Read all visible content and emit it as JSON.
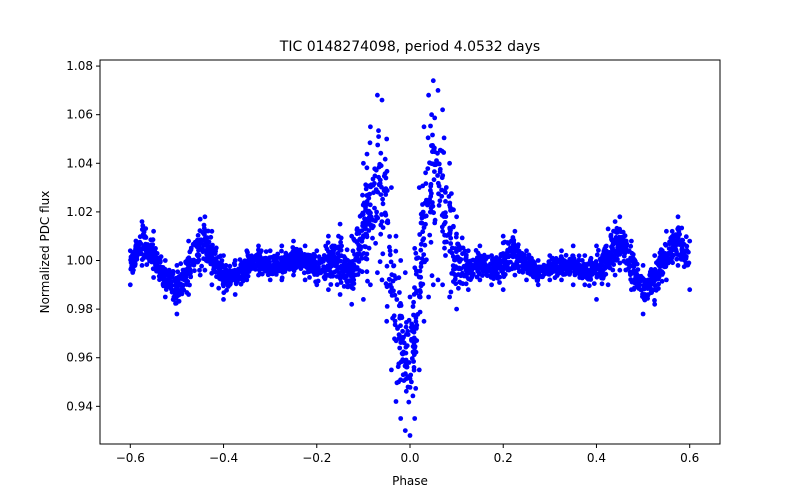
{
  "chart_data": {
    "type": "scatter",
    "title": "TIC 0148274098, period 4.0532 days",
    "xlabel": "Phase",
    "ylabel": "Normalized PDC flux",
    "xlim": [
      -0.665,
      0.665
    ],
    "ylim": [
      0.9245,
      1.0825
    ],
    "grid": false,
    "marker_color": "#0000ff",
    "x_ticks": [
      {
        "value": -0.6,
        "label": "−0.6"
      },
      {
        "value": -0.4,
        "label": "−0.4"
      },
      {
        "value": -0.2,
        "label": "−0.2"
      },
      {
        "value": 0.0,
        "label": "0.0"
      },
      {
        "value": 0.2,
        "label": "0.2"
      },
      {
        "value": 0.4,
        "label": "0.4"
      },
      {
        "value": 0.6,
        "label": "0.6"
      }
    ],
    "y_ticks": [
      {
        "value": 0.94,
        "label": "0.94"
      },
      {
        "value": 0.96,
        "label": "0.96"
      },
      {
        "value": 0.98,
        "label": "0.98"
      },
      {
        "value": 1.0,
        "label": "1.00"
      },
      {
        "value": 1.02,
        "label": "1.02"
      },
      {
        "value": 1.04,
        "label": "1.04"
      },
      {
        "value": 1.06,
        "label": "1.06"
      },
      {
        "value": 1.08,
        "label": "1.08"
      }
    ],
    "envelope": {
      "phase": [
        -0.6,
        -0.575,
        -0.55,
        -0.525,
        -0.5,
        -0.475,
        -0.45,
        -0.44,
        -0.425,
        -0.4,
        -0.375,
        -0.35,
        -0.325,
        -0.3,
        -0.275,
        -0.25,
        -0.225,
        -0.2,
        -0.175,
        -0.15,
        -0.125,
        -0.1,
        -0.085,
        -0.07,
        -0.06,
        -0.05,
        -0.04,
        -0.03,
        -0.02,
        -0.01,
        0.0,
        0.01,
        0.02,
        0.03,
        0.04,
        0.05,
        0.06,
        0.07,
        0.085,
        0.1,
        0.125,
        0.15,
        0.175,
        0.2,
        0.225,
        0.25,
        0.275,
        0.3,
        0.325,
        0.35,
        0.375,
        0.4,
        0.425,
        0.44,
        0.45,
        0.475,
        0.5,
        0.525,
        0.55,
        0.575,
        0.6
      ],
      "flux_max": [
        1.004,
        1.016,
        1.012,
        1.0,
        0.998,
        1.008,
        1.017,
        1.018,
        1.012,
        1.002,
        1.0,
        1.004,
        1.006,
        1.004,
        1.006,
        1.008,
        1.006,
        1.004,
        1.01,
        1.015,
        1.01,
        1.04,
        1.055,
        1.068,
        1.066,
        1.05,
        1.03,
        1.01,
        1.0,
        0.995,
        0.985,
        1.005,
        1.03,
        1.055,
        1.068,
        1.074,
        1.07,
        1.062,
        1.04,
        1.018,
        1.004,
        1.006,
        1.002,
        1.01,
        1.012,
        1.004,
        1.0,
        1.002,
        1.004,
        1.006,
        1.002,
        1.006,
        1.013,
        1.016,
        1.018,
        1.008,
        0.998,
        1.002,
        1.012,
        1.018,
        1.008
      ],
      "flux_min": [
        0.99,
        0.998,
        0.993,
        0.985,
        0.978,
        0.986,
        0.994,
        0.996,
        0.99,
        0.984,
        0.986,
        0.992,
        0.994,
        0.992,
        0.992,
        0.994,
        0.992,
        0.99,
        0.988,
        0.986,
        0.982,
        0.984,
        0.99,
        0.995,
        0.992,
        0.975,
        0.955,
        0.942,
        0.935,
        0.93,
        0.928,
        0.935,
        0.955,
        0.975,
        0.985,
        0.99,
        0.992,
        0.99,
        0.985,
        0.98,
        0.988,
        0.992,
        0.99,
        0.988,
        0.994,
        0.992,
        0.99,
        0.992,
        0.992,
        0.99,
        0.99,
        0.984,
        0.99,
        0.994,
        0.996,
        0.988,
        0.978,
        0.982,
        0.992,
        0.998,
        0.988
      ]
    }
  }
}
